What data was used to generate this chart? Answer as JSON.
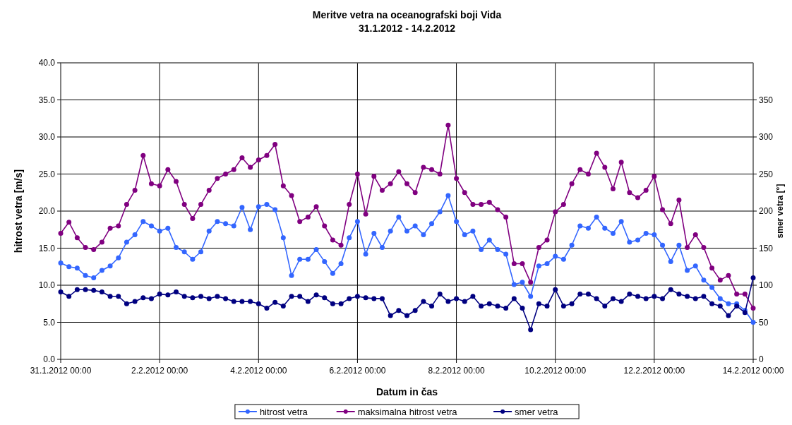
{
  "chart_data": {
    "type": "line",
    "title": "Meritve vetra na oceanografski boji Vida",
    "subtitle": "31.1.2012 - 14.2.2012",
    "xlabel": "Datum in čas",
    "ylabel": "hitrost vetra [m/s]",
    "y2label": "smer vetra [°]",
    "x": [
      "2012-01-31T00:00",
      "2012-01-31T04:00",
      "2012-01-31T08:00",
      "2012-01-31T12:00",
      "2012-01-31T16:00",
      "2012-01-31T20:00",
      "2012-02-01T00:00",
      "2012-02-01T04:00",
      "2012-02-01T08:00",
      "2012-02-01T12:00",
      "2012-02-01T16:00",
      "2012-02-01T20:00",
      "2012-02-02T00:00",
      "2012-02-02T04:00",
      "2012-02-02T08:00",
      "2012-02-02T12:00",
      "2012-02-02T16:00",
      "2012-02-02T20:00",
      "2012-02-03T00:00",
      "2012-02-03T04:00",
      "2012-02-03T08:00",
      "2012-02-03T12:00",
      "2012-02-03T16:00",
      "2012-02-03T20:00",
      "2012-02-04T00:00",
      "2012-02-04T04:00",
      "2012-02-04T08:00",
      "2012-02-04T12:00",
      "2012-02-04T16:00",
      "2012-02-04T20:00",
      "2012-02-05T00:00",
      "2012-02-05T04:00",
      "2012-02-05T08:00",
      "2012-02-05T12:00",
      "2012-02-05T16:00",
      "2012-02-05T20:00",
      "2012-02-06T00:00",
      "2012-02-06T04:00",
      "2012-02-06T08:00",
      "2012-02-06T12:00",
      "2012-02-06T16:00",
      "2012-02-06T20:00",
      "2012-02-07T00:00",
      "2012-02-07T04:00",
      "2012-02-07T08:00",
      "2012-02-07T12:00",
      "2012-02-07T16:00",
      "2012-02-07T20:00",
      "2012-02-08T00:00",
      "2012-02-08T04:00",
      "2012-02-08T08:00",
      "2012-02-08T12:00",
      "2012-02-08T16:00",
      "2012-02-08T20:00",
      "2012-02-09T00:00",
      "2012-02-09T04:00",
      "2012-02-09T08:00",
      "2012-02-09T12:00",
      "2012-02-09T16:00",
      "2012-02-09T20:00",
      "2012-02-10T00:00",
      "2012-02-10T04:00",
      "2012-02-10T08:00",
      "2012-02-10T12:00",
      "2012-02-10T16:00",
      "2012-02-10T20:00",
      "2012-02-11T00:00",
      "2012-02-11T04:00",
      "2012-02-11T08:00",
      "2012-02-11T12:00",
      "2012-02-11T16:00",
      "2012-02-11T20:00",
      "2012-02-12T00:00",
      "2012-02-12T04:00",
      "2012-02-12T08:00",
      "2012-02-12T12:00",
      "2012-02-12T16:00",
      "2012-02-12T20:00",
      "2012-02-13T00:00",
      "2012-02-13T04:00",
      "2012-02-13T08:00",
      "2012-02-13T12:00",
      "2012-02-13T16:00",
      "2012-02-13T20:00",
      "2012-02-14T00:00"
    ],
    "series": [
      {
        "name": "hitrost vetra",
        "color": "#3366ff",
        "values": [
          13.0,
          12.5,
          12.3,
          11.3,
          11.0,
          12.0,
          12.6,
          13.7,
          15.8,
          16.8,
          18.6,
          18.0,
          17.3,
          17.7,
          15.1,
          14.5,
          13.5,
          14.5,
          17.3,
          18.6,
          18.3,
          18.0,
          20.5,
          17.5,
          20.6,
          20.9,
          20.2,
          16.4,
          11.3,
          13.5,
          13.5,
          14.8,
          13.2,
          11.6,
          12.9,
          16.4,
          18.6,
          14.2,
          17.0,
          15.1,
          17.3,
          19.2,
          17.3,
          18.0,
          16.8,
          18.3,
          19.9,
          22.1,
          18.6,
          16.8,
          17.3,
          14.8,
          16.1,
          14.8,
          14.2,
          10.1,
          10.4,
          8.5,
          12.6,
          12.9,
          13.9,
          13.5,
          15.4,
          18.0,
          17.7,
          19.2,
          17.7,
          17.0,
          18.6,
          15.8,
          16.1,
          17.0,
          16.8,
          15.4,
          13.2,
          15.4,
          12.0,
          12.6,
          10.7,
          9.7,
          8.2,
          7.5,
          7.5,
          6.6,
          5.0
        ]
      },
      {
        "name": "maksimalna hitrost vetra",
        "color": "#800080",
        "values": [
          17.0,
          18.5,
          16.4,
          15.1,
          14.8,
          15.8,
          17.7,
          18.0,
          20.9,
          22.8,
          27.5,
          23.7,
          23.4,
          25.6,
          24.0,
          20.9,
          19.0,
          20.9,
          22.8,
          24.4,
          25.0,
          25.6,
          27.2,
          25.9,
          26.9,
          27.5,
          29.0,
          23.4,
          22.1,
          18.6,
          19.2,
          20.6,
          18.0,
          16.1,
          15.4,
          20.9,
          25.0,
          19.6,
          24.7,
          22.8,
          23.7,
          25.3,
          23.7,
          22.5,
          25.9,
          25.6,
          25.0,
          31.6,
          24.4,
          22.5,
          20.9,
          20.9,
          21.2,
          20.2,
          19.2,
          12.9,
          12.9,
          10.4,
          15.1,
          16.1,
          19.9,
          20.9,
          23.7,
          25.6,
          25.0,
          27.8,
          25.9,
          23.0,
          26.6,
          22.5,
          21.8,
          22.8,
          24.7,
          20.2,
          18.3,
          21.5,
          15.1,
          16.8,
          15.1,
          12.3,
          10.7,
          11.3,
          8.8,
          8.8,
          6.9
        ]
      },
      {
        "name": "smer vetra",
        "color": "#000080",
        "axis": "y2",
        "values": [
          91,
          85,
          94,
          94,
          93,
          91,
          85,
          85,
          75,
          78,
          83,
          82,
          88,
          87,
          91,
          85,
          83,
          85,
          82,
          85,
          82,
          78,
          78,
          78,
          75,
          69,
          77,
          72,
          85,
          85,
          78,
          87,
          83,
          75,
          75,
          82,
          85,
          83,
          82,
          82,
          59,
          66,
          59,
          66,
          78,
          72,
          88,
          78,
          82,
          78,
          85,
          72,
          75,
          72,
          69,
          82,
          69,
          40,
          75,
          72,
          94,
          72,
          75,
          88,
          88,
          82,
          72,
          82,
          78,
          88,
          85,
          82,
          85,
          82,
          94,
          88,
          85,
          82,
          85,
          75,
          72,
          59,
          72,
          63,
          110
        ]
      }
    ],
    "xlim": [
      "2012-01-31T00:00",
      "2012-02-14T00:00"
    ],
    "xticks": [
      {
        "value": "2012-01-31T00:00",
        "label": "31.1.2012 00:00"
      },
      {
        "value": "2012-02-02T00:00",
        "label": "2.2.2012 00:00"
      },
      {
        "value": "2012-02-04T00:00",
        "label": "4.2.2012 00:00"
      },
      {
        "value": "2012-02-06T00:00",
        "label": "6.2.2012 00:00"
      },
      {
        "value": "2012-02-08T00:00",
        "label": "8.2.2012 00:00"
      },
      {
        "value": "2012-02-10T00:00",
        "label": "10.2.2012 00:00"
      },
      {
        "value": "2012-02-12T00:00",
        "label": "12.2.2012 00:00"
      },
      {
        "value": "2012-02-14T00:00",
        "label": "14.2.2012 00:00"
      }
    ],
    "ylim": [
      0,
      40
    ],
    "yticks": [
      {
        "value": 0,
        "label": "0.0"
      },
      {
        "value": 5,
        "label": "5.0"
      },
      {
        "value": 10,
        "label": "10.0"
      },
      {
        "value": 15,
        "label": "15.0"
      },
      {
        "value": 20,
        "label": "20.0"
      },
      {
        "value": 25,
        "label": "25.0"
      },
      {
        "value": 30,
        "label": "30.0"
      },
      {
        "value": 35,
        "label": "35.0"
      },
      {
        "value": 40,
        "label": "40.0"
      }
    ],
    "y2lim": [
      0,
      400
    ],
    "y2ticks": [
      0,
      50,
      100,
      150,
      200,
      250,
      300,
      350
    ],
    "grid": true,
    "legend": "bottom",
    "marker": "circle",
    "line_style": "solid"
  }
}
